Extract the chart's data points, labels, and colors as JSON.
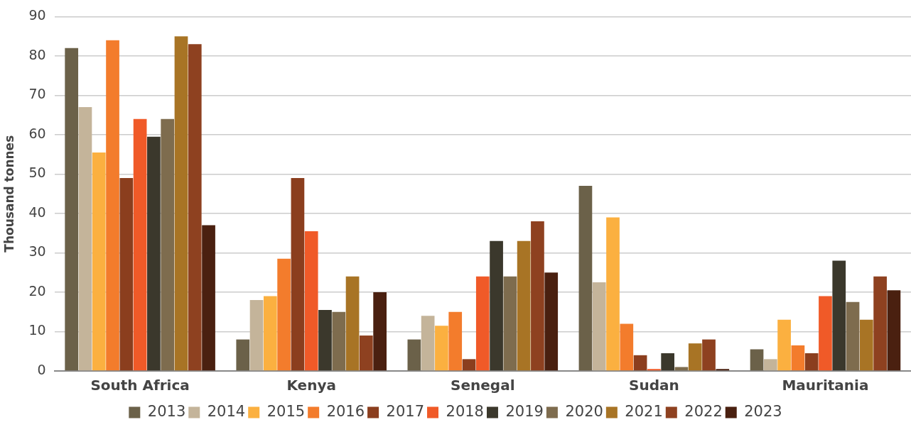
{
  "chart_data": {
    "type": "bar",
    "ylabel": "Thousand tonnes",
    "categories": [
      "South Africa",
      "Kenya",
      "Senegal",
      "Sudan",
      "Mauritania"
    ],
    "series": [
      {
        "name": "2013",
        "color": "#6b6149",
        "values": [
          82,
          8,
          8,
          47,
          5.5
        ]
      },
      {
        "name": "2014",
        "color": "#c4b49a",
        "values": [
          67,
          18,
          14,
          22.5,
          3
        ]
      },
      {
        "name": "2015",
        "color": "#fbb040",
        "values": [
          55.5,
          19,
          11.5,
          39,
          13
        ]
      },
      {
        "name": "2016",
        "color": "#f37c2c",
        "values": [
          84,
          28.5,
          15,
          12,
          6.5
        ]
      },
      {
        "name": "2017",
        "color": "#8b3e1e",
        "values": [
          49,
          49,
          3,
          4,
          4.5
        ]
      },
      {
        "name": "2018",
        "color": "#f05a28",
        "values": [
          64,
          35.5,
          24,
          0.5,
          19
        ]
      },
      {
        "name": "2019",
        "color": "#3b382c",
        "values": [
          59.5,
          15.5,
          33,
          4.5,
          28
        ]
      },
      {
        "name": "2020",
        "color": "#7e6c4e",
        "values": [
          64,
          15,
          24,
          1,
          17.5
        ]
      },
      {
        "name": "2021",
        "color": "#a87425",
        "values": [
          85,
          24,
          33,
          7,
          13
        ]
      },
      {
        "name": "2022",
        "color": "#8e4120",
        "values": [
          83,
          9,
          38,
          8,
          24
        ]
      },
      {
        "name": "2023",
        "color": "#4a2010",
        "values": [
          37,
          20,
          25,
          0.5,
          20.5
        ]
      }
    ],
    "ylim": [
      0,
      90
    ],
    "yticks": [
      0,
      10,
      20,
      30,
      40,
      50,
      60,
      70,
      80,
      90
    ],
    "grid": "y",
    "legend": "bottom"
  }
}
